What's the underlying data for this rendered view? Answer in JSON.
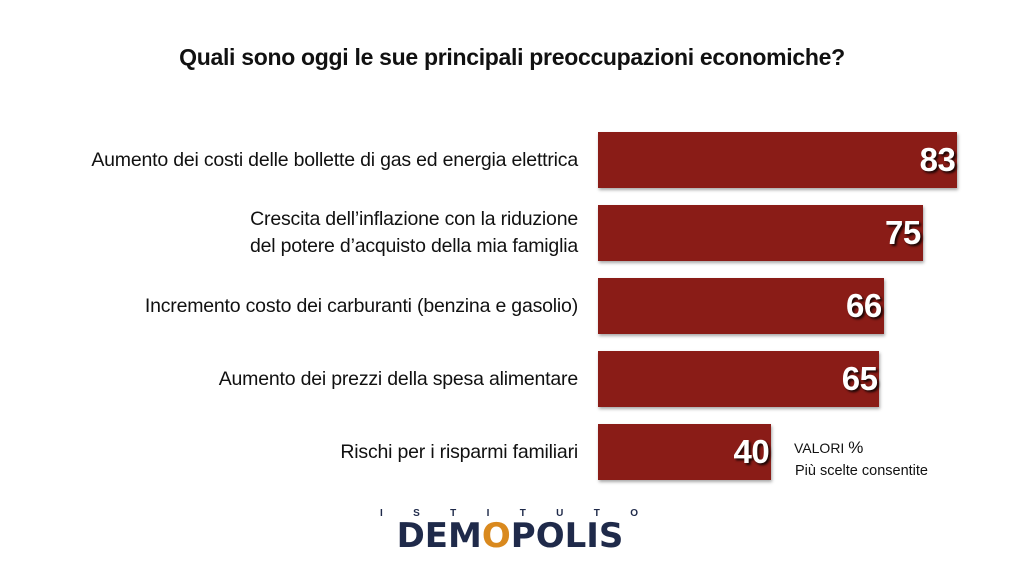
{
  "chart_data": {
    "type": "bar",
    "orientation": "horizontal",
    "title": "Quali sono oggi le sue principali preoccupazioni economiche?",
    "categories": [
      [
        "Aumento dei costi delle bollette di gas ed energia elettrica"
      ],
      [
        "Crescita dell’inflazione con la riduzione",
        "del potere d’acquisto della mia famiglia"
      ],
      [
        "Incremento costo dei carburanti (benzina e gasolio)"
      ],
      [
        "Aumento dei prezzi della spesa alimentare"
      ],
      [
        "Rischi per i risparmi familiari"
      ]
    ],
    "values": [
      83,
      75,
      66,
      65,
      40
    ],
    "xlim": [
      0,
      100
    ],
    "bar_color": "#8a1c17",
    "grid": false
  },
  "units_label": "VALORI",
  "units_symbol": "%",
  "note": "Più scelte consentite",
  "logo": {
    "top_letters": [
      "I",
      "S",
      "T",
      "I",
      "T",
      "U",
      "T",
      "O"
    ],
    "name_part1": "DEM",
    "name_o": "O",
    "name_part2": "POLIS",
    "color_dark": "#1f2a4a",
    "color_accent": "#d9891e"
  }
}
